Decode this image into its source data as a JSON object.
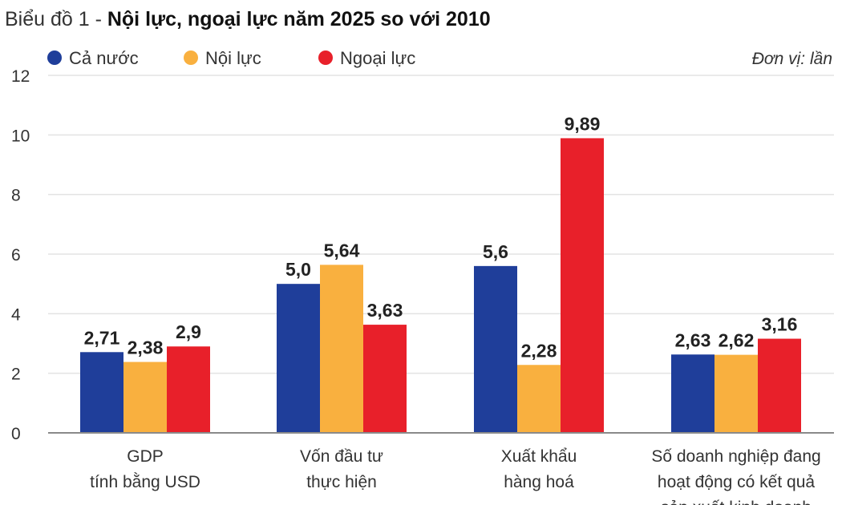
{
  "chart_data": {
    "type": "bar",
    "title_prefix": "Biểu đồ 1 - ",
    "title": "Nội lực, ngoại lực năm 2025 so với 2010",
    "unit_label": "Đơn vị: lần",
    "ylim": [
      0,
      12
    ],
    "yticks": [
      0,
      2,
      4,
      6,
      8,
      10,
      12
    ],
    "grid": true,
    "legend_position": "top-left",
    "categories": [
      [
        "GDP",
        "tính bằng USD"
      ],
      [
        "Vốn đầu tư",
        "thực hiện"
      ],
      [
        "Xuất khẩu",
        "hàng hoá"
      ],
      [
        "Số doanh nghiệp đang",
        "hoạt động có kết quả",
        "sản xuất kinh doanh"
      ]
    ],
    "series": [
      {
        "name": "Cả nước",
        "color": "#1f3e9a",
        "values": [
          2.71,
          5.0,
          5.6,
          2.63
        ],
        "labels": [
          "2,71",
          "5,0",
          "5,6",
          "2,63"
        ]
      },
      {
        "name": "Nội lực",
        "color": "#f9b03f",
        "values": [
          2.38,
          5.64,
          2.28,
          2.62
        ],
        "labels": [
          "2,38",
          "5,64",
          "2,28",
          "2,62"
        ]
      },
      {
        "name": "Ngoại lực",
        "color": "#e8202a",
        "values": [
          2.9,
          3.63,
          9.89,
          3.16
        ],
        "labels": [
          "2,9",
          "3,63",
          "9,89",
          "3,16"
        ]
      }
    ]
  }
}
